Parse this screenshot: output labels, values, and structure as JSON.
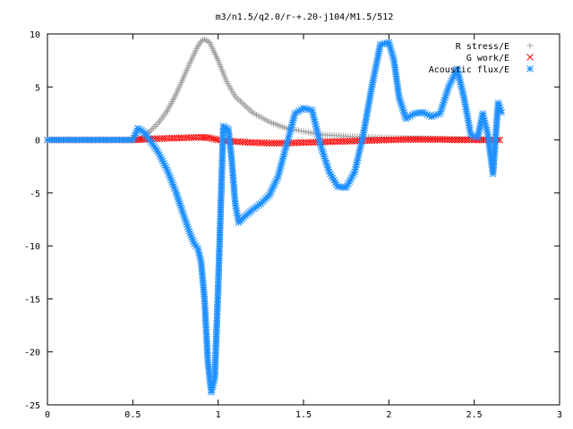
{
  "chart_data": {
    "type": "scatter",
    "title": "m3/n1.5/q2.0/r-+.20-j104/M1.5/512",
    "xlabel": "",
    "ylabel": "",
    "xlim": [
      0,
      3
    ],
    "ylim": [
      -25,
      10
    ],
    "xticks": [
      "0",
      "0.5",
      "1",
      "1.5",
      "2",
      "2.5",
      "3"
    ],
    "yticks": [
      "10",
      "5",
      "0",
      "-5",
      "-10",
      "-15",
      "-20",
      "-25"
    ],
    "grid": false,
    "legend_position": "top-right",
    "series": [
      {
        "name": "R stress/E",
        "marker": "plus",
        "color": "#a0a0a0",
        "x": [
          0.0,
          0.5,
          0.55,
          0.6,
          0.65,
          0.7,
          0.75,
          0.8,
          0.85,
          0.88,
          0.9,
          0.92,
          0.95,
          1.0,
          1.05,
          1.1,
          1.2,
          1.3,
          1.4,
          1.5,
          1.6,
          1.8,
          2.0,
          2.3,
          2.65
        ],
        "y": [
          0.0,
          0.0,
          0.2,
          0.8,
          1.6,
          2.7,
          4.2,
          6.0,
          7.8,
          8.8,
          9.3,
          9.5,
          9.2,
          7.5,
          5.5,
          4.1,
          2.6,
          1.7,
          1.1,
          0.8,
          0.5,
          0.3,
          0.2,
          0.1,
          0.05
        ]
      },
      {
        "name": "G work/E",
        "marker": "cross",
        "color": "#ff0000",
        "x": [
          0.0,
          0.5,
          0.55,
          0.6,
          0.7,
          0.8,
          0.9,
          0.95,
          1.0,
          1.1,
          1.2,
          1.3,
          1.4,
          1.5,
          1.6,
          1.7,
          1.8,
          1.9,
          2.0,
          2.1,
          2.2,
          2.3,
          2.4,
          2.5,
          2.65
        ],
        "y": [
          0.0,
          0.0,
          0.05,
          0.1,
          0.15,
          0.2,
          0.25,
          0.2,
          0.0,
          -0.15,
          -0.25,
          -0.3,
          -0.3,
          -0.25,
          -0.2,
          -0.15,
          -0.1,
          -0.05,
          0.0,
          0.05,
          0.05,
          0.05,
          0.0,
          0.0,
          0.0
        ]
      },
      {
        "name": "Acoustic flux/E",
        "marker": "star",
        "color": "#1e90ff",
        "x": [
          0.0,
          0.5,
          0.53,
          0.56,
          0.6,
          0.65,
          0.7,
          0.75,
          0.8,
          0.83,
          0.86,
          0.88,
          0.9,
          0.92,
          0.94,
          0.96,
          0.98,
          1.0,
          1.03,
          1.06,
          1.08,
          1.1,
          1.12,
          1.15,
          1.2,
          1.25,
          1.3,
          1.35,
          1.4,
          1.45,
          1.5,
          1.55,
          1.6,
          1.65,
          1.7,
          1.75,
          1.8,
          1.85,
          1.9,
          1.95,
          2.0,
          2.03,
          2.06,
          2.1,
          2.15,
          2.2,
          2.25,
          2.3,
          2.35,
          2.4,
          2.44,
          2.48,
          2.52,
          2.55,
          2.58,
          2.61,
          2.64,
          2.66
        ],
        "y": [
          0.0,
          0.0,
          1.1,
          0.8,
          0.0,
          -1.2,
          -2.8,
          -4.8,
          -7.2,
          -8.6,
          -9.8,
          -10.2,
          -11.5,
          -15.0,
          -21.0,
          -23.8,
          -22.5,
          -14.0,
          1.3,
          1.0,
          -2.0,
          -6.0,
          -7.8,
          -7.3,
          -6.6,
          -6.0,
          -5.2,
          -3.5,
          -0.5,
          2.5,
          3.0,
          2.8,
          -0.5,
          -3.0,
          -4.4,
          -4.5,
          -3.0,
          0.5,
          5.0,
          9.0,
          9.2,
          7.5,
          4.0,
          2.0,
          2.5,
          2.6,
          2.2,
          2.5,
          5.0,
          6.7,
          4.0,
          0.5,
          0.2,
          2.5,
          0.5,
          -3.2,
          3.5,
          2.6
        ]
      }
    ]
  }
}
